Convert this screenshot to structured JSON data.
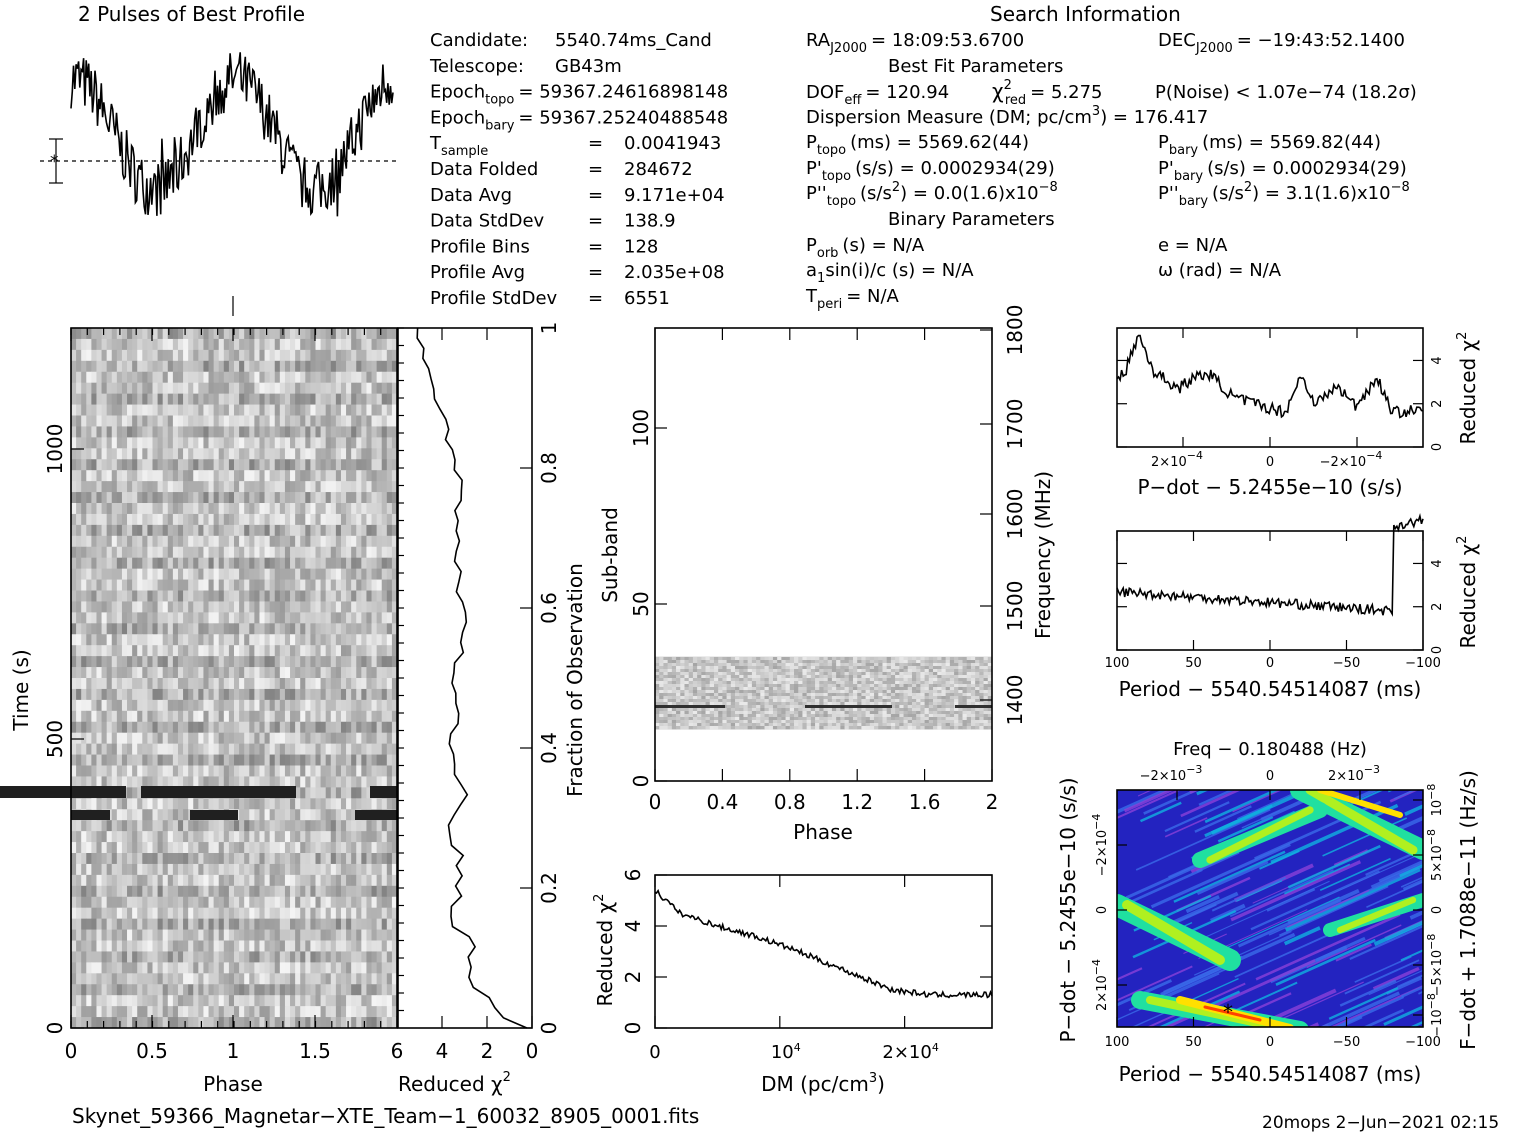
{
  "titles": {
    "profile": "2 Pulses of Best Profile",
    "search": "Search Information",
    "best_fit": "Best Fit Parameters",
    "binary": "Binary Parameters"
  },
  "candidate_info": [
    {
      "label": "Candidate:",
      "value": "5540.74ms_Cand"
    },
    {
      "label": "Telescope:",
      "value": "GB43m"
    },
    {
      "label": "Epoch",
      "sub": "topo",
      "value": "= 59367.24616898148"
    },
    {
      "label": "Epoch",
      "sub": "bary",
      "value": "= 59367.25240488548"
    },
    {
      "label": "T",
      "sub": "sample",
      "value": "0.0041943"
    },
    {
      "label": "Data Folded",
      "value": "284672"
    },
    {
      "label": "Data Avg",
      "value": "9.171e+04"
    },
    {
      "label": "Data StdDev",
      "value": "138.9"
    },
    {
      "label": "Profile Bins",
      "value": "128"
    },
    {
      "label": "Profile Avg",
      "value": "2.035e+08"
    },
    {
      "label": "Profile StdDev",
      "value": "6551"
    }
  ],
  "search_info": {
    "ra": "RA",
    "ra_sub": "J2000",
    "ra_value": "= 18:09:53.6700",
    "dec": "DEC",
    "dec_sub": "J2000",
    "dec_value": "= −19:43:52.1400",
    "dof_label": "DOF",
    "dof_sub": "eff",
    "dof_value": "= 120.94",
    "chi_label": "χ",
    "chi_sub": "red",
    "chi_value": "= 5.275",
    "pnoise": "P(Noise) < 1.07e−74   (18.2σ)",
    "dm_label": "Dispersion Measure (DM; pc/cm",
    "dm_value": ") = 176.417",
    "ptopo_label": "P",
    "ptopo_sub": "topo",
    "ptopo_value": "(ms) =   5569.62(44)",
    "pbary_label": "P",
    "pbary_sub": "bary",
    "pbary_value": "(ms) =   5569.82(44)",
    "pdtopo_label": "P'",
    "pdtopo_sub": "topo",
    "pdtopo_value": "(s/s) =   0.0002934(29)",
    "pdbary_label": "P'",
    "pdbary_sub": "bary",
    "pdbary_value": "(s/s) =   0.0002934(29)",
    "pddtopo_label": "P''",
    "pddtopo_sub": "topo",
    "pddtopo_value": "(s/s",
    "pddtopo_value2": ") = 0.0(1.6)x10",
    "pddtopo_exp": "−8",
    "pddbary_label": "P''",
    "pddbary_sub": "bary",
    "pddbary_value": "(s/s",
    "pddbary_value2": ") =  3.1(1.6)x10",
    "pddbary_exp": "−8",
    "porb_label": "P",
    "porb_sub": "orb",
    "porb_value": "(s) = N/A",
    "e_value": "e = N/A",
    "asini_label": "a",
    "asini_sub": "1",
    "asini_value": "sin(i)/c (s) = N/A",
    "omega_value": "ω (rad) = N/A",
    "tperi_label": "T",
    "tperi_sub": "peri",
    "tperi_value": "= N/A"
  },
  "footer": {
    "filename": "Skynet_59366_Magnetar−XTE_Team−1_60032_8905_0001.fits",
    "stamp": "20mops  2−Jun−2021 02:15"
  },
  "chart_data": [
    {
      "id": "time_phase",
      "type": "heatmap",
      "xlabel": "Phase",
      "ylabel": "Time (s)",
      "xticks": [
        "0",
        "0.5",
        "1",
        "1.5"
      ],
      "yticks": [
        "0",
        "500",
        "1000"
      ],
      "xlim": [
        0,
        2
      ],
      "ylim": [
        0,
        1150
      ]
    },
    {
      "id": "time_chi2",
      "type": "line",
      "xlabel": "Reduced χ",
      "ylabel": "Fraction of Observation",
      "xticks": [
        "6",
        "4",
        "2",
        "0"
      ],
      "yticks": [
        "0",
        "0.2",
        "0.4",
        "0.6",
        "0.8",
        "1"
      ],
      "xlim": [
        6,
        0
      ],
      "ylim": [
        0,
        1
      ]
    },
    {
      "id": "subband_phase",
      "type": "heatmap",
      "xlabel": "Phase",
      "ylabel": "Sub-band",
      "y2label": "Frequency (MHz)",
      "xticks": [
        "0",
        "0.4",
        "0.8",
        "1.2",
        "1.6",
        "2"
      ],
      "yticks": [
        "0",
        "50",
        "100"
      ],
      "y2ticks": [
        "1400",
        "1500",
        "1600",
        "1700",
        "1800"
      ],
      "xlim": [
        0,
        2
      ],
      "ylim": [
        0,
        128
      ]
    },
    {
      "id": "dm_chi2",
      "type": "line",
      "xlabel": "DM (pc/cm",
      "ylabel": "Reduced χ",
      "xticks": [
        "0",
        "10",
        "2×10"
      ],
      "xtick_exp": "4",
      "yticks": [
        "0",
        "2",
        "4",
        "6"
      ],
      "xlim": [
        0,
        27000
      ],
      "ylim": [
        0,
        6
      ],
      "anchors_x": [
        0,
        2000,
        5000,
        8000,
        11000,
        14000,
        17000,
        19000,
        22000,
        27000
      ],
      "anchors_y": [
        5.4,
        4.5,
        4.0,
        3.6,
        3.1,
        2.5,
        1.9,
        1.5,
        1.3,
        1.3
      ]
    },
    {
      "id": "pdot_chi2",
      "type": "line",
      "xlabel": "P−dot − 5.2455e−10 (s/s)",
      "ylabel": "Reduced χ",
      "xticks": [
        "2×10",
        "0",
        "−2×10"
      ],
      "xtick_exp": "−4",
      "yticks": [
        "0",
        "2",
        "4"
      ],
      "ylim": [
        0,
        5.5
      ]
    },
    {
      "id": "period_chi2",
      "type": "line",
      "xlabel": "Period − 5540.54514087 (ms)",
      "ylabel": "Reduced χ",
      "xticks": [
        "100",
        "50",
        "0",
        "−50",
        "−100"
      ],
      "yticks": [
        "0",
        "2",
        "4"
      ],
      "xlim": [
        100,
        -100
      ],
      "ylim": [
        0,
        5.5
      ]
    },
    {
      "id": "ppdot_plane",
      "type": "heatmap",
      "title": "Freq − 0.180488 (Hz)",
      "xlabel": "Period − 5540.54514087 (ms)",
      "ylabel": "P−dot − 5.2455e−10 (s/s)",
      "y2label": "F−dot + 1.7088e−11 (Hz/s)",
      "xticks": [
        "100",
        "50",
        "0",
        "−50",
        "−100"
      ],
      "topticks": [
        "−2×10",
        "0",
        "2×10"
      ],
      "topticks_exp": "−3",
      "yticks": [
        "−2×10",
        "0",
        "2×10"
      ],
      "yticks_exp": "−4",
      "y2ticks": [
        "10",
        "5×10",
        "0",
        "−5×10",
        "−10"
      ],
      "y2ticks_exp": "−8",
      "colors": [
        "#2020c8",
        "#3a6ae8",
        "#10b0e0",
        "#20e0a0",
        "#b0f020",
        "#ffe000",
        "#ff4000",
        "#8a40d8"
      ]
    }
  ]
}
